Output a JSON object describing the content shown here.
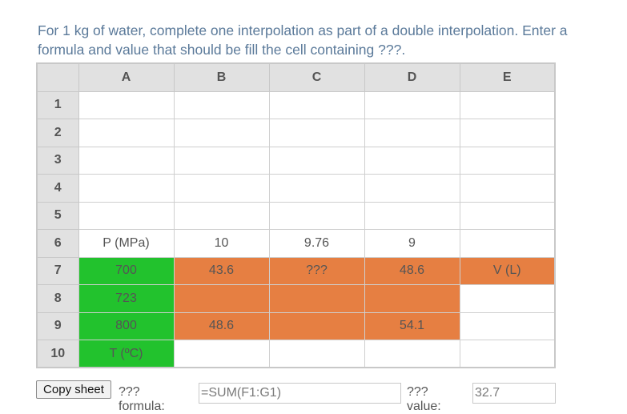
{
  "prompt": "For 1 kg of water, complete one interpolation as part of a double interpolation. Enter a formula and value that should be fill the cell containing ???.",
  "columns": [
    "A",
    "B",
    "C",
    "D",
    "E"
  ],
  "rows": [
    "1",
    "2",
    "3",
    "4",
    "5",
    "6",
    "7",
    "8",
    "9",
    "10"
  ],
  "cells": {
    "A6": "P (MPa)",
    "B6": "10",
    "C6": "9.76",
    "D6": "9",
    "A7": "700",
    "B7": "43.6",
    "C7": "???",
    "D7": "48.6",
    "E7": "V (L)",
    "A8": "723",
    "A9": "800",
    "B9": "48.6",
    "D9": "54.1",
    "A10": "T (ºC)"
  },
  "fills": {
    "A7": "green",
    "A8": "green",
    "A9": "green",
    "A10": "green",
    "B7": "orange",
    "C7": "orange",
    "D7": "orange",
    "E7": "orange",
    "B8": "orange",
    "C8": "orange",
    "D8": "orange",
    "B9": "orange",
    "C9": "orange",
    "D9": "orange"
  },
  "colors": {
    "green": "#22c22d",
    "orange": "#e67f42",
    "header": "#e1e1e1",
    "prompt": "#5b7a9a"
  },
  "controls": {
    "copy_label": "Copy sheet",
    "formula_label": "??? formula:",
    "formula_value": "=SUM(F1:G1)",
    "value_label": "??? value:",
    "value_value": "32.7"
  }
}
